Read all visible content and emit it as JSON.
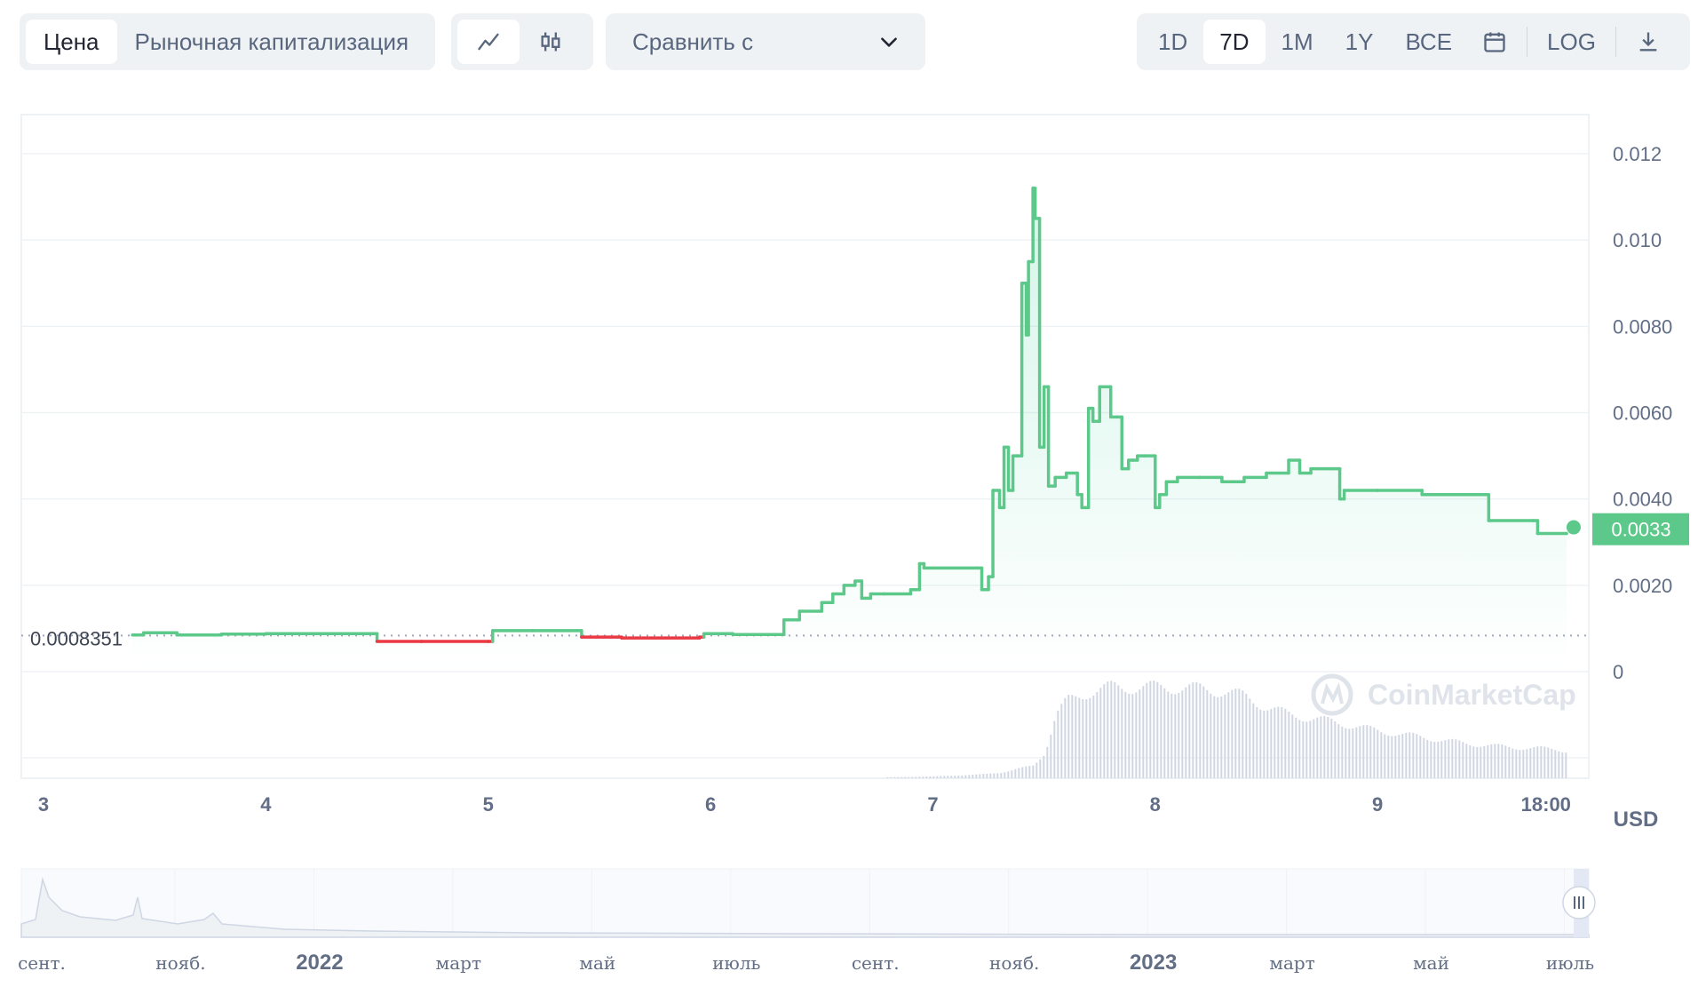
{
  "toolbar": {
    "metric_tabs": [
      "Цена",
      "Рыночная капитализация"
    ],
    "active_metric": "Цена",
    "chart_type_icons": [
      "line-chart-icon",
      "candlestick-icon"
    ],
    "compare_label": "Сравнить с",
    "ranges": [
      "1D",
      "7D",
      "1M",
      "1Y",
      "ВСЕ"
    ],
    "active_range": "7D",
    "log_label": "LOG",
    "calendar_icon": "calendar-icon",
    "download_icon": "download-icon"
  },
  "watermark": "CoinMarketCap",
  "currency_label": "USD",
  "colors": {
    "up": "#16c784",
    "line_up": "#5cc98a",
    "down": "#ea3943",
    "badge": "#5cc98a",
    "volume": "#cfd6e4"
  },
  "chart_data": {
    "type": "line",
    "x_unit": "day",
    "xlim": [
      2.9,
      9.95
    ],
    "ylim": [
      0,
      0.012
    ],
    "y_ticks": [
      "0",
      "0.0020",
      "0.0040",
      "0.0060",
      "0.0080",
      "0.010",
      "0.012"
    ],
    "x_ticks": [
      "3",
      "4",
      "5",
      "6",
      "7",
      "8",
      "9",
      "18:00"
    ],
    "baseline_label": "0.0008351",
    "baseline_value": 0.0008351,
    "current_price_label": "0.0033",
    "current_price": 0.0033,
    "grid": true,
    "series": [
      {
        "x": [
          3.4,
          3.45,
          3.6,
          3.8,
          4.0,
          4.2,
          4.5,
          4.5,
          4.7,
          5.0,
          5.02,
          5.2,
          5.4,
          5.42,
          5.6,
          5.95,
          5.97,
          6.1,
          6.3,
          6.33,
          6.4,
          6.5,
          6.55,
          6.6,
          6.65,
          6.68,
          6.72,
          6.78,
          6.9,
          6.94,
          6.96,
          7.2,
          7.22,
          7.25,
          7.27,
          7.3,
          7.32,
          7.34,
          7.36,
          7.38,
          7.4,
          7.42,
          7.43,
          7.45,
          7.46,
          7.48,
          7.5,
          7.52,
          7.55,
          7.6,
          7.65,
          7.67,
          7.7,
          7.72,
          7.75,
          7.8,
          7.85,
          7.88,
          7.9,
          7.92,
          7.95,
          8.0,
          8.02,
          8.05,
          8.1,
          8.2,
          8.3,
          8.4,
          8.5,
          8.6,
          8.65,
          8.7,
          8.8,
          8.83,
          8.85,
          9.0,
          9.2,
          9.4,
          9.48,
          9.5,
          9.7,
          9.72,
          9.85
        ],
        "y": [
          0.00085,
          0.0009,
          0.00085,
          0.00087,
          0.00088,
          0.00088,
          0.00088,
          0.0007,
          0.0007,
          0.0007,
          0.00095,
          0.00095,
          0.00095,
          0.0008,
          0.00078,
          0.0008,
          0.00088,
          0.00086,
          0.00086,
          0.0012,
          0.0014,
          0.0016,
          0.0018,
          0.002,
          0.0021,
          0.0017,
          0.0018,
          0.0018,
          0.0019,
          0.0025,
          0.0024,
          0.0024,
          0.0019,
          0.0022,
          0.0042,
          0.0038,
          0.0052,
          0.0042,
          0.005,
          0.005,
          0.009,
          0.0078,
          0.0095,
          0.0112,
          0.0105,
          0.0052,
          0.0066,
          0.0043,
          0.0045,
          0.0046,
          0.0041,
          0.0038,
          0.0061,
          0.0058,
          0.0066,
          0.0059,
          0.0047,
          0.0049,
          0.0049,
          0.005,
          0.005,
          0.0038,
          0.0041,
          0.0044,
          0.0045,
          0.0045,
          0.0044,
          0.0045,
          0.0046,
          0.0049,
          0.0046,
          0.0047,
          0.0047,
          0.004,
          0.0042,
          0.0042,
          0.0041,
          0.0041,
          0.0041,
          0.0035,
          0.0035,
          0.0032,
          0.0032
        ]
      }
    ],
    "volume": {
      "x": [
        6.6,
        7.0,
        7.2,
        7.3,
        7.45,
        7.5,
        7.55,
        7.6,
        7.7,
        7.8,
        7.9,
        8.0,
        8.1,
        8.2,
        8.3,
        8.4,
        8.5,
        8.6,
        8.8,
        9.0,
        9.2,
        9.4,
        9.6,
        9.8,
        9.85
      ],
      "rel": [
        0.0,
        0.02,
        0.04,
        0.06,
        0.14,
        0.28,
        0.7,
        0.85,
        0.95,
        1.0,
        1.0,
        1.0,
        1.0,
        0.98,
        0.96,
        0.9,
        0.78,
        0.7,
        0.62,
        0.52,
        0.45,
        0.38,
        0.34,
        0.32,
        0.3
      ]
    }
  },
  "navigator": {
    "month_labels": [
      "сент.",
      "нояб.",
      "2022",
      "март",
      "май",
      "июль",
      "сент.",
      "нояб.",
      "2023",
      "март",
      "май",
      "июль"
    ],
    "year_flags": [
      false,
      false,
      true,
      false,
      false,
      false,
      false,
      false,
      true,
      false,
      false,
      false
    ],
    "handle_icon": "range-handle-icon"
  }
}
